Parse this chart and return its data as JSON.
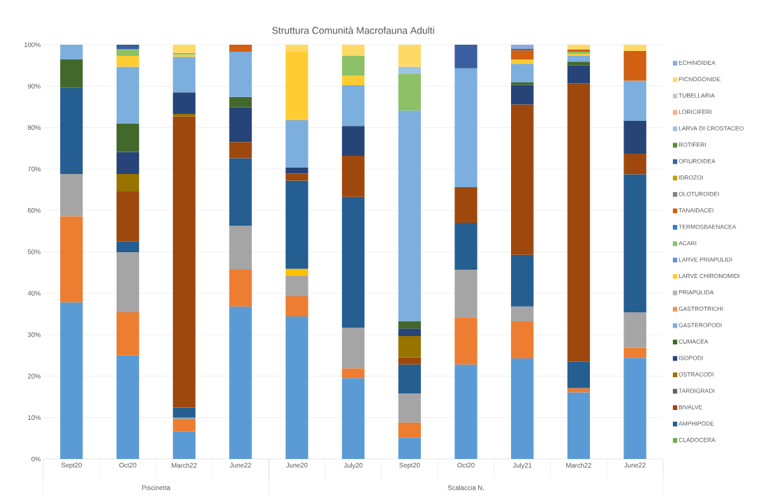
{
  "chart_data": {
    "type": "bar",
    "stacked": true,
    "title": "Struttura Comunità Macrofauna Adulti",
    "categories": [
      "Sept20",
      "Oct20",
      "March22",
      "June22",
      "June20",
      "July20",
      "Sept20",
      "Oct20",
      "July21",
      "March22",
      "June22"
    ],
    "annotations": [
      "Piscinetta",
      "Scalaccia N."
    ],
    "ylim": [
      0,
      100
    ],
    "yticks": [
      {
        "value": 0,
        "label": "0%"
      },
      {
        "value": 10,
        "label": "10%"
      },
      {
        "value": 20,
        "label": "20%"
      },
      {
        "value": 30,
        "label": "30%"
      },
      {
        "value": 40,
        "label": "40%"
      },
      {
        "value": 50,
        "label": "50%"
      },
      {
        "value": 60,
        "label": "60%"
      },
      {
        "value": 70,
        "label": "70%"
      },
      {
        "value": 80,
        "label": "80%"
      },
      {
        "value": 90,
        "label": "90%"
      },
      {
        "value": 100,
        "label": "100%"
      }
    ],
    "grid": "y",
    "legend": "right",
    "series": [
      {
        "color": "#5b9bd5",
        "values": [
          37.8,
          25.0,
          6.6,
          36.8,
          34.4,
          19.5,
          5.2,
          22.8,
          24.3,
          16.1,
          24.4
        ]
      },
      {
        "color": "#ed7d31",
        "values": [
          20.8,
          10.4,
          3.0,
          8.9,
          4.9,
          2.4,
          3.6,
          11.4,
          8.9,
          1.0,
          2.5
        ]
      },
      {
        "color": "#a5a5a5",
        "values": [
          10.2,
          14.5,
          0.4,
          10.6,
          4.9,
          9.8,
          7.0,
          11.5,
          3.6,
          null,
          8.5
        ]
      },
      {
        "color": "#ffc000",
        "values": [
          null,
          null,
          null,
          null,
          1.7,
          null,
          null,
          null,
          null,
          null,
          null
        ]
      },
      {
        "name": "CLADOCERA",
        "color": "#70ad47",
        "values": [
          null,
          null,
          null,
          null,
          null,
          null,
          null,
          null,
          null,
          null,
          null
        ]
      },
      {
        "name": "AMPHIPODE",
        "color": "#255e91",
        "values": [
          20.8,
          2.6,
          2.4,
          16.3,
          21.3,
          31.6,
          7.0,
          11.3,
          12.5,
          6.4,
          33.3
        ]
      },
      {
        "name": "BIVALVE",
        "color": "#9e480e",
        "values": [
          null,
          12.1,
          70.3,
          3.9,
          1.7,
          9.9,
          1.7,
          8.6,
          36.3,
          67.2,
          5.0
        ]
      },
      {
        "name": "TARDIGRADI",
        "color": "#636363",
        "values": [
          null,
          null,
          null,
          null,
          null,
          null,
          null,
          null,
          null,
          null,
          null
        ]
      },
      {
        "name": "OSTRACODI",
        "color": "#997300",
        "values": [
          null,
          4.2,
          0.6,
          null,
          null,
          null,
          5.2,
          null,
          null,
          null,
          null
        ]
      },
      {
        "name": "ISOPODI",
        "color": "#264478",
        "values": [
          null,
          5.3,
          5.2,
          8.4,
          1.5,
          7.2,
          1.8,
          null,
          4.7,
          4.3,
          7.9
        ]
      },
      {
        "name": "CUMACEA",
        "color": "#43682b",
        "values": [
          6.9,
          6.9,
          null,
          2.5,
          null,
          null,
          1.8,
          null,
          0.6,
          0.9,
          null
        ]
      },
      {
        "name": "GASTEROPODI",
        "color": "#7cafdd",
        "values": [
          3.5,
          13.7,
          8.6,
          10.9,
          11.4,
          9.8,
          50.8,
          28.7,
          4.5,
          1.5,
          9.7
        ]
      },
      {
        "name": "GASTROTRICHI",
        "color": "#f1975a",
        "values": [
          null,
          null,
          null,
          null,
          null,
          null,
          null,
          null,
          null,
          null,
          null
        ]
      },
      {
        "name": "PRIAPULIDA",
        "color": "#b7b7b7",
        "values": [
          null,
          null,
          null,
          null,
          null,
          null,
          null,
          null,
          null,
          null,
          null
        ]
      },
      {
        "name": "LARVE CHIRONOMIDI",
        "color": "#ffcd33",
        "values": [
          null,
          2.6,
          0.5,
          null,
          16.5,
          2.3,
          null,
          null,
          1.0,
          0.4,
          null
        ]
      },
      {
        "name": "LARVE PRIAPULIDI",
        "color": "#698ed0",
        "values": [
          null,
          null,
          null,
          null,
          null,
          null,
          null,
          null,
          null,
          null,
          null
        ]
      },
      {
        "name": "ACARI",
        "color": "#8cc168",
        "values": [
          null,
          1.6,
          0.4,
          null,
          null,
          4.9,
          8.8,
          null,
          null,
          0.5,
          null
        ]
      },
      {
        "name": "TERMOSBAENACEA",
        "color": "#327dc2",
        "values": [
          null,
          null,
          null,
          null,
          null,
          null,
          null,
          null,
          null,
          null,
          null
        ]
      },
      {
        "name": "TANAIDACEI",
        "color": "#d26012",
        "values": [
          null,
          null,
          null,
          1.7,
          null,
          null,
          null,
          null,
          2.3,
          0.5,
          7.2
        ]
      },
      {
        "name": "OLOTUROIDEI",
        "color": "#848484",
        "values": [
          null,
          null,
          null,
          null,
          null,
          null,
          null,
          null,
          null,
          null,
          null
        ]
      },
      {
        "name": "IDROZOI",
        "color": "#cc9a00",
        "values": [
          null,
          null,
          null,
          null,
          null,
          null,
          null,
          null,
          null,
          null,
          null
        ]
      },
      {
        "name": "OFIUROIDEA",
        "color": "#3a5fa0",
        "values": [
          null,
          1.1,
          null,
          null,
          null,
          null,
          null,
          5.7,
          0.3,
          null,
          null
        ]
      },
      {
        "name": "ROTIFERI",
        "color": "#5a8a39",
        "values": [
          null,
          null,
          null,
          null,
          null,
          null,
          null,
          null,
          null,
          null,
          null
        ]
      },
      {
        "name": "LARVA DI CROSTACEO",
        "color": "#9dc3e6",
        "values": [
          null,
          null,
          null,
          null,
          null,
          null,
          1.8,
          null,
          null,
          null,
          null
        ]
      },
      {
        "name": "LORICIFERI",
        "color": "#f4b183",
        "values": [
          null,
          null,
          null,
          null,
          null,
          null,
          null,
          null,
          null,
          null,
          null
        ]
      },
      {
        "name": "TUBELLARIA",
        "color": "#c9c9c9",
        "values": [
          null,
          null,
          null,
          null,
          null,
          null,
          null,
          null,
          null,
          null,
          null
        ]
      },
      {
        "name": "PICNOGONIDE",
        "color": "#ffd966",
        "values": [
          null,
          null,
          2.0,
          null,
          1.7,
          2.6,
          5.3,
          null,
          null,
          1.2,
          1.5
        ]
      },
      {
        "name": "ECHINOIDEA",
        "color": "#8faadc",
        "values": [
          null,
          null,
          null,
          null,
          null,
          null,
          null,
          null,
          1.0,
          null,
          null
        ]
      }
    ]
  }
}
